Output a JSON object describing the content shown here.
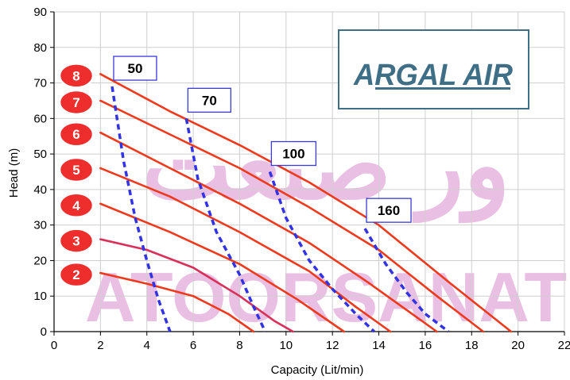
{
  "chart_data": {
    "type": "line",
    "xlabel": "Capacity (Lit/min)",
    "ylabel": "Head (m)",
    "xlim": [
      0,
      22
    ],
    "ylim": [
      0,
      90
    ],
    "xticks": [
      "0",
      "2",
      "4",
      "6",
      "8",
      "10",
      "12",
      "14",
      "16",
      "18",
      "20",
      "22"
    ],
    "yticks": [
      "0",
      "10",
      "20",
      "30",
      "40",
      "50",
      "60",
      "70",
      "80",
      "90"
    ],
    "grid": true,
    "pressure_curves": [
      {
        "name": "8",
        "x": [
          2,
          5,
          8,
          11,
          14,
          17,
          19.7
        ],
        "y": [
          72.5,
          62,
          52.5,
          42,
          30,
          14,
          0
        ]
      },
      {
        "name": "7",
        "x": [
          2,
          5,
          8,
          11,
          14,
          16.5,
          18.5
        ],
        "y": [
          65,
          55.5,
          46,
          35,
          23,
          10,
          0
        ]
      },
      {
        "name": "6",
        "x": [
          2,
          5,
          8,
          11,
          13.5,
          16.5
        ],
        "y": [
          56,
          46,
          36,
          25,
          14,
          0
        ]
      },
      {
        "name": "5",
        "x": [
          2,
          5,
          8,
          11,
          13,
          14.5
        ],
        "y": [
          46,
          38,
          28,
          17,
          7,
          0
        ]
      },
      {
        "name": "4",
        "x": [
          2,
          5,
          8,
          10.5,
          12.5
        ],
        "y": [
          36,
          28,
          19,
          9,
          0
        ]
      },
      {
        "name": "3",
        "x": [
          2,
          4,
          6,
          8,
          9.5,
          10.3
        ],
        "y": [
          26,
          23,
          18,
          10,
          3,
          0
        ]
      },
      {
        "name": "2",
        "x": [
          2,
          4,
          6,
          7.5,
          8.6
        ],
        "y": [
          16.5,
          13.5,
          10,
          5,
          0
        ]
      }
    ],
    "air_consumption_curves": [
      {
        "name": "50",
        "x": [
          2.5,
          3,
          3.5,
          4,
          4.5,
          5
        ],
        "y": [
          69,
          48,
          32,
          20,
          9,
          0
        ]
      },
      {
        "name": "70",
        "x": [
          5.7,
          6.2,
          7,
          8,
          8.6,
          9.1
        ],
        "y": [
          60,
          43,
          28,
          16,
          7,
          0
        ]
      },
      {
        "name": "100",
        "x": [
          9.3,
          10,
          11,
          12,
          13,
          13.8
        ],
        "y": [
          45,
          32,
          20,
          12,
          5,
          0
        ]
      },
      {
        "name": "160",
        "x": [
          13.4,
          14.3,
          15.2,
          16,
          16.6,
          17
        ],
        "y": [
          29,
          19,
          11,
          5,
          2,
          0
        ]
      }
    ],
    "badges": [
      "8",
      "7",
      "6",
      "5",
      "4",
      "3",
      "2"
    ],
    "consumption_labels": [
      "50",
      "70",
      "100",
      "160"
    ]
  },
  "logo": {
    "text": "ARGAL AIR"
  },
  "watermark": {
    "line1": "ور صنعت",
    "line2": "ATOORSANAT"
  },
  "colors": {
    "pressure_line": "#ee3a1c",
    "pressure_line_alt": "#d8305a",
    "consumption_line": "#3333e6",
    "badge_fill": "#ee2d2d",
    "grid": "#cfcfcf",
    "logo_border": "#3f6f86",
    "logo_text": "#3f6f86",
    "box_border": "#3a3ad8",
    "watermark": "#e9bfe3"
  }
}
